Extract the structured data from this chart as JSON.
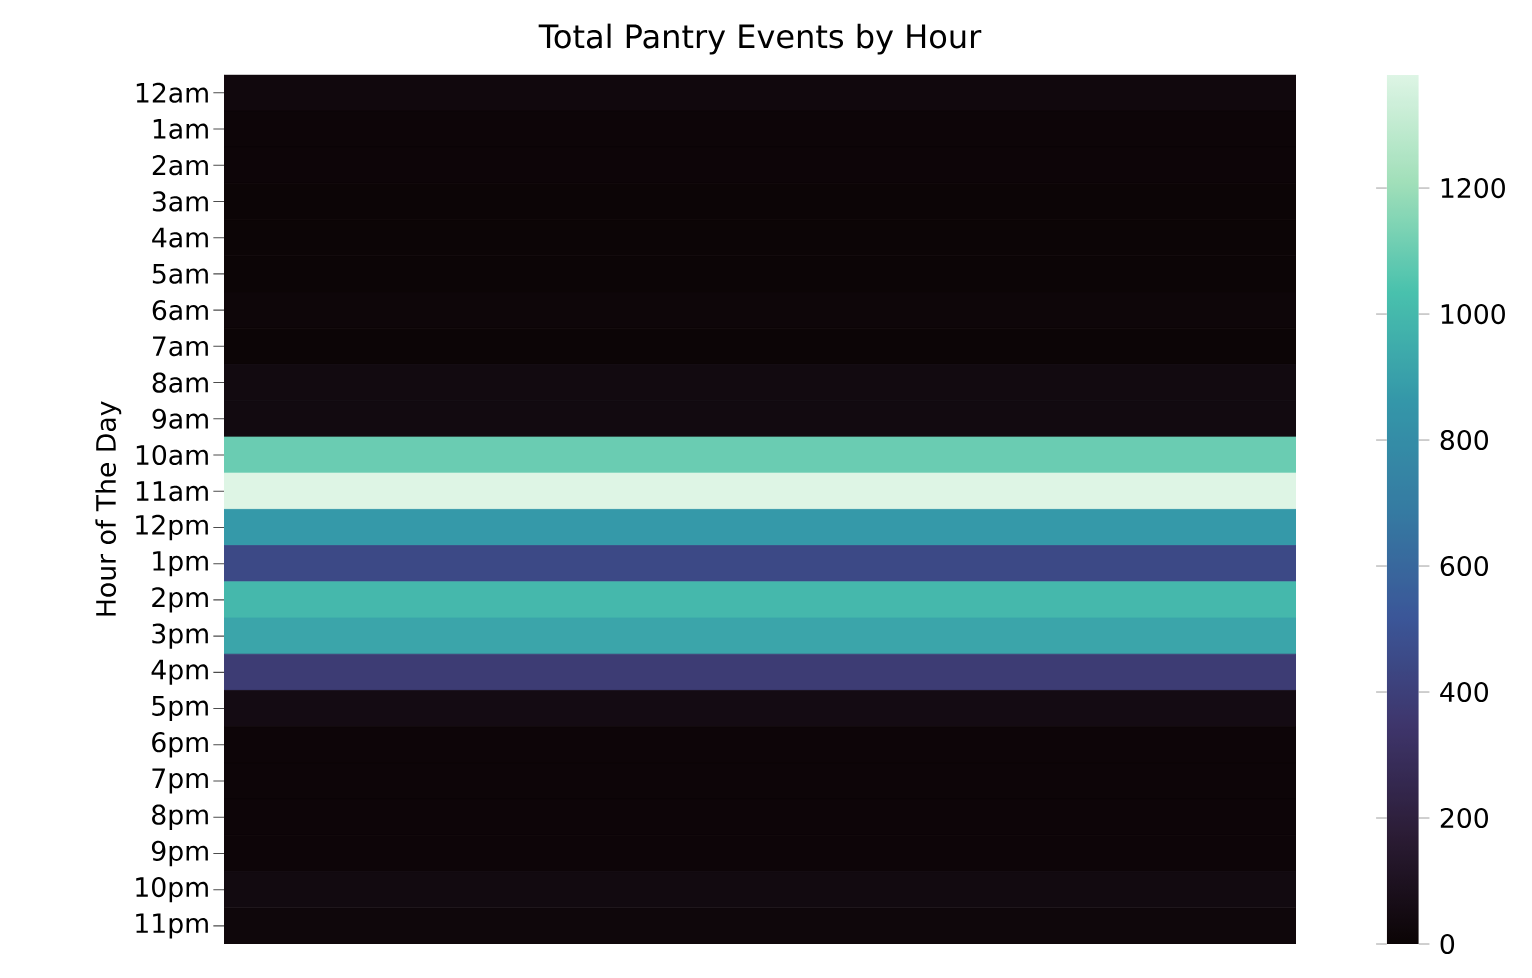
{
  "chart_data": {
    "type": "heatmap",
    "title": "Total Pantry Events by Hour",
    "ylabel": "Hour of The Day",
    "categories": [
      null
    ],
    "y_categories": [
      "12am",
      "1am",
      "2am",
      "3am",
      "4am",
      "5am",
      "6am",
      "7am",
      "8am",
      "9am",
      "10am",
      "11am",
      "12pm",
      "1pm",
      "2pm",
      "3pm",
      "4pm",
      "5pm",
      "6pm",
      "7pm",
      "8pm",
      "9pm",
      "10pm",
      "11pm"
    ],
    "cells": [
      [
        30
      ],
      [
        10
      ],
      [
        10
      ],
      [
        5
      ],
      [
        5
      ],
      [
        5
      ],
      [
        15
      ],
      [
        5
      ],
      [
        40
      ],
      [
        40
      ],
      [
        1100
      ],
      [
        1380
      ],
      [
        870
      ],
      [
        450
      ],
      [
        1000
      ],
      [
        920
      ],
      [
        380
      ],
      [
        50
      ],
      [
        10
      ],
      [
        10
      ],
      [
        10
      ],
      [
        10
      ],
      [
        40
      ],
      [
        20
      ]
    ],
    "clim": [
      0,
      1380
    ],
    "cticks": [
      0,
      200,
      400,
      600,
      800,
      1000,
      1200
    ]
  }
}
